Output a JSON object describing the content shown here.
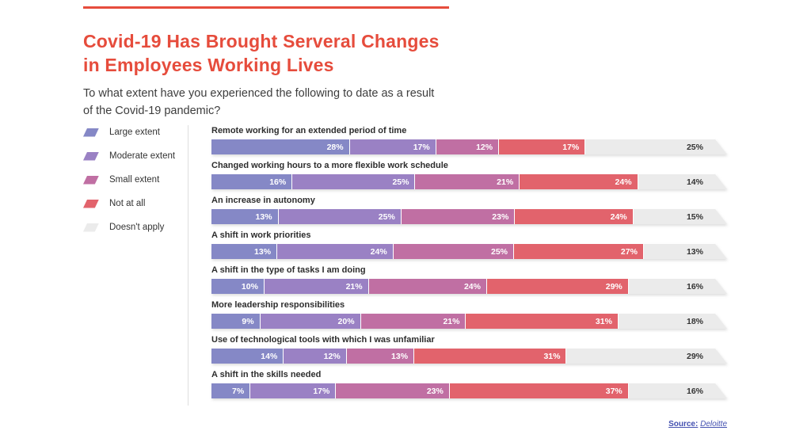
{
  "header": {
    "title_line1": "Covid-19 Has Brought Serveral Changes",
    "title_line2": "in Employees Working Lives",
    "subtitle": "To what extent have you experienced the following to date as a result of the Covid-19 pandemic?",
    "accent_color": "#e64c3c"
  },
  "legend": {
    "items": [
      {
        "label": "Large extent",
        "color": "#8588c6"
      },
      {
        "label": "Moderate extent",
        "color": "#9a81c4"
      },
      {
        "label": "Small extent",
        "color": "#c06fa3"
      },
      {
        "label": "Not at all",
        "color": "#e2636c"
      },
      {
        "label": "Doesn't apply",
        "color": "#ebebeb"
      }
    ]
  },
  "chart_data": {
    "type": "bar",
    "variant": "horizontal-stacked",
    "unit": "%",
    "legend_position": "left",
    "series_names": [
      "Large extent",
      "Moderate extent",
      "Small extent",
      "Not at all",
      "Doesn't apply"
    ],
    "rows": [
      {
        "label": "Remote working for an extended period of time",
        "values": [
          28,
          17,
          12,
          17,
          25
        ]
      },
      {
        "label": "Changed working hours to a more flexible work schedule",
        "values": [
          16,
          25,
          21,
          24,
          14
        ]
      },
      {
        "label": "An increase in autonomy",
        "values": [
          13,
          25,
          23,
          24,
          15
        ]
      },
      {
        "label": "A shift in work priorities",
        "values": [
          13,
          24,
          25,
          27,
          13
        ]
      },
      {
        "label": "A shift in the type of tasks I am doing",
        "values": [
          10,
          21,
          24,
          29,
          16
        ]
      },
      {
        "label": "More leadership responsibilities",
        "values": [
          9,
          20,
          21,
          31,
          18
        ]
      },
      {
        "label": "Use of technological tools with which I was unfamiliar",
        "values": [
          14,
          12,
          13,
          31,
          29
        ]
      },
      {
        "label": "A shift in the skills needed",
        "values": [
          7,
          17,
          23,
          37,
          16
        ]
      }
    ]
  },
  "source": {
    "label": "Source:",
    "name": "Deloitte"
  }
}
